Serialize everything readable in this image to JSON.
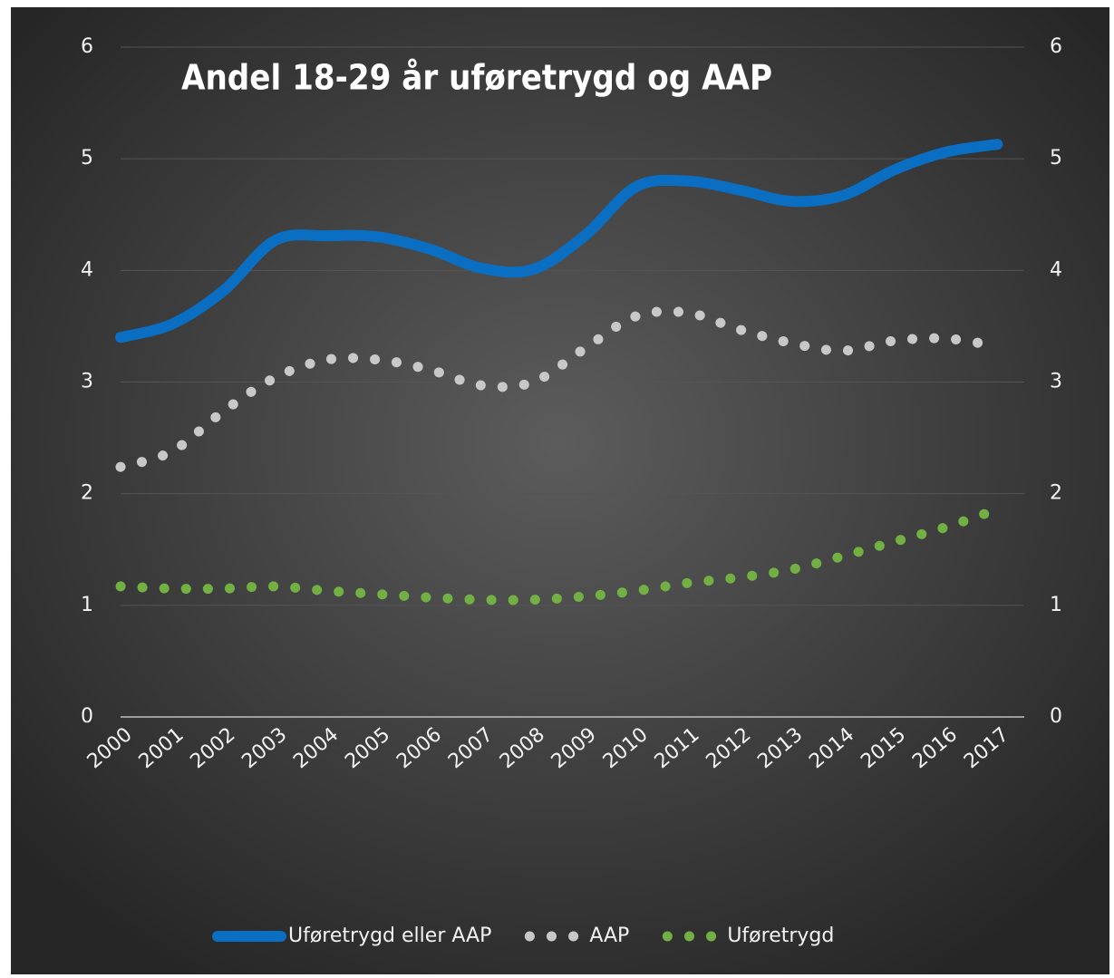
{
  "chart_data": {
    "type": "line",
    "title": "Andel 18-29 år uføretrygd og AAP",
    "categories": [
      "2000",
      "2001",
      "2002",
      "2003",
      "2004",
      "2005",
      "2006",
      "2007",
      "2008",
      "2009",
      "2010",
      "2011",
      "2012",
      "2013",
      "2014",
      "2015",
      "2016",
      "2017"
    ],
    "series": [
      {
        "name": "Uføretrygd eller AAP",
        "color": "#0a6fc2",
        "style": "solid",
        "axis": "y",
        "values": [
          3.4,
          3.52,
          3.82,
          4.27,
          4.31,
          4.3,
          4.19,
          4.02,
          4.01,
          4.31,
          4.75,
          4.8,
          4.72,
          4.62,
          4.67,
          4.9,
          5.06,
          5.13
        ]
      },
      {
        "name": "AAP",
        "color": "#c8c8c8",
        "style": "dotted",
        "axis": "y2",
        "values": [
          2.24,
          2.38,
          2.74,
          3.04,
          3.2,
          3.2,
          3.11,
          2.97,
          3.0,
          3.3,
          3.59,
          3.62,
          3.47,
          3.35,
          3.28,
          3.37,
          3.39,
          3.32
        ]
      },
      {
        "name": "Uføretrygd",
        "color": "#72b043",
        "style": "dotted",
        "axis": "y2",
        "values": [
          1.17,
          1.15,
          1.15,
          1.17,
          1.13,
          1.1,
          1.07,
          1.05,
          1.05,
          1.08,
          1.13,
          1.2,
          1.25,
          1.32,
          1.44,
          1.57,
          1.7,
          1.86
        ]
      }
    ],
    "ylim": [
      0,
      6
    ],
    "yticks": [
      0,
      1,
      2,
      3,
      4,
      5,
      6
    ],
    "y2lim": [
      0,
      6
    ],
    "y2ticks": [
      0,
      1,
      2,
      3,
      4,
      5,
      6
    ],
    "grid": true,
    "legend": "bottom"
  }
}
